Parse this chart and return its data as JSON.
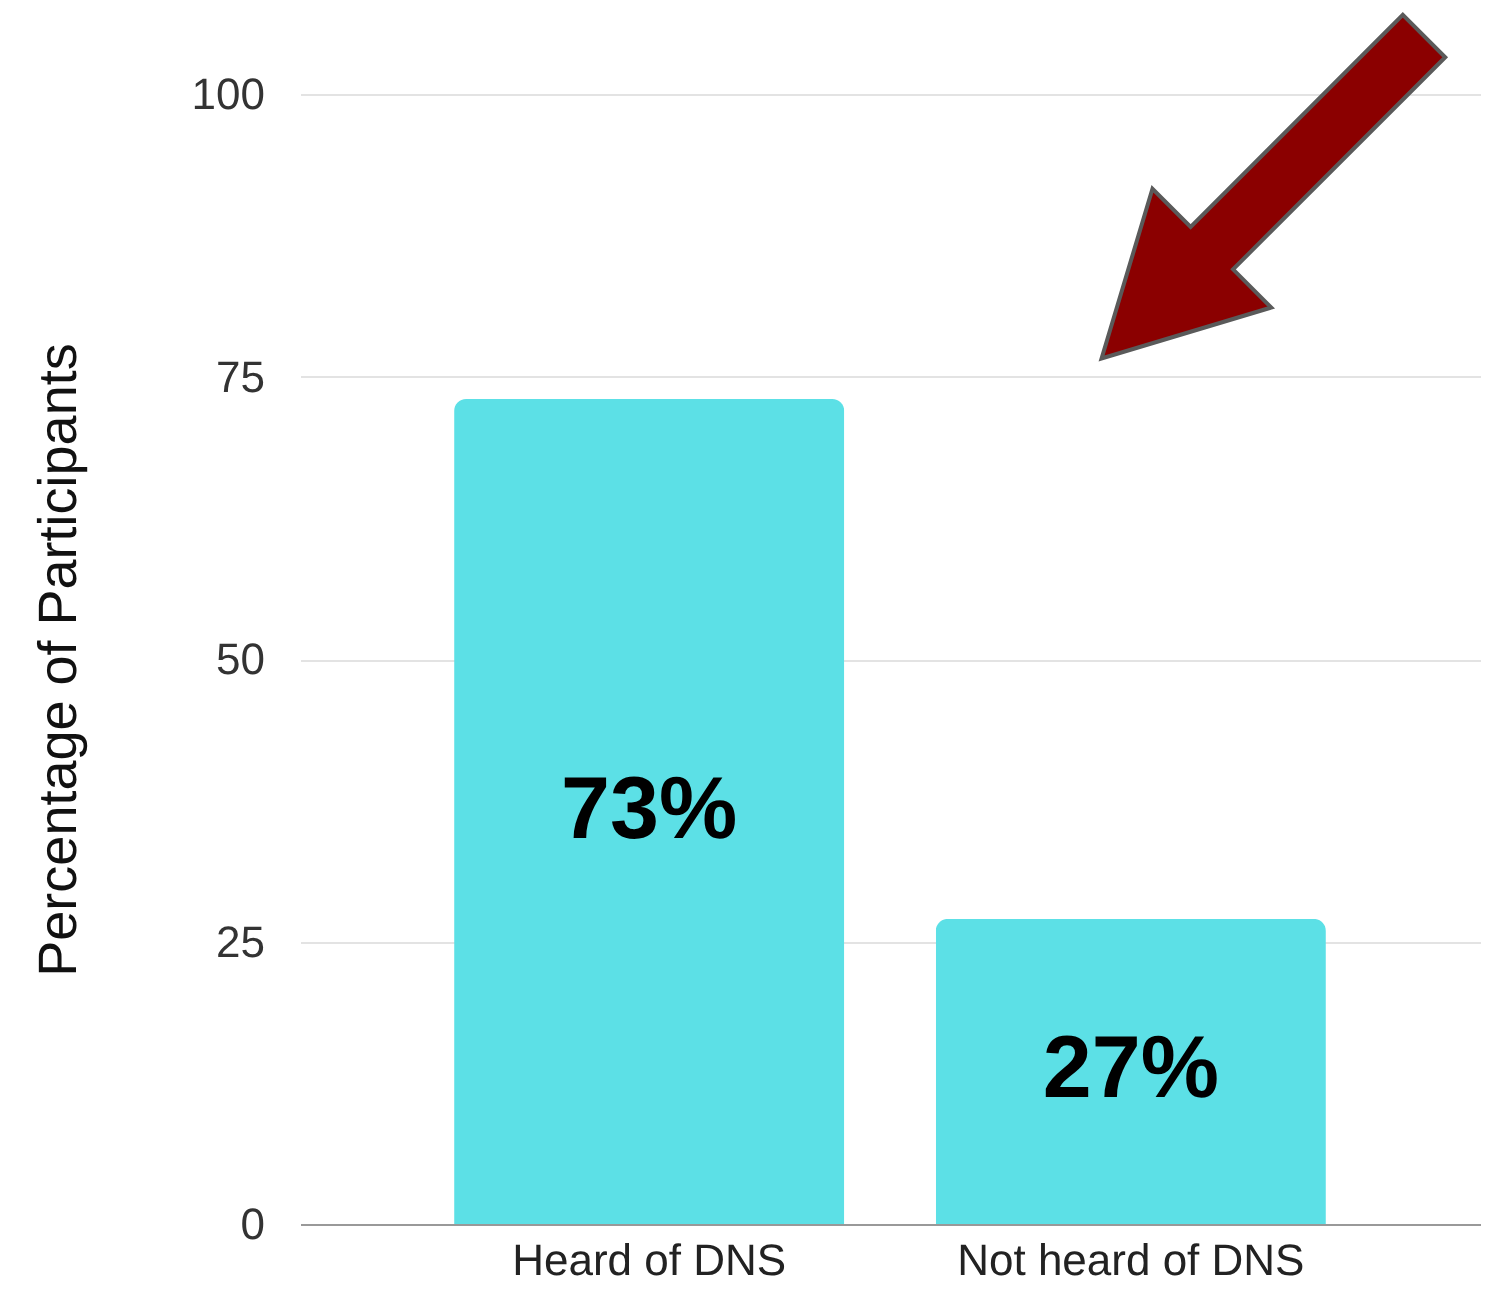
{
  "chart_data": {
    "type": "bar",
    "ylabel": "Percentage of Participants",
    "categories": [
      "Heard of DNS",
      "Not heard of DNS"
    ],
    "values": [
      73,
      27
    ],
    "value_labels": [
      "73%",
      "27%"
    ],
    "color": "#5ce0e6",
    "ylim": [
      0,
      100
    ],
    "yticks": [
      0,
      25,
      50,
      75,
      100
    ],
    "grid": "y"
  }
}
